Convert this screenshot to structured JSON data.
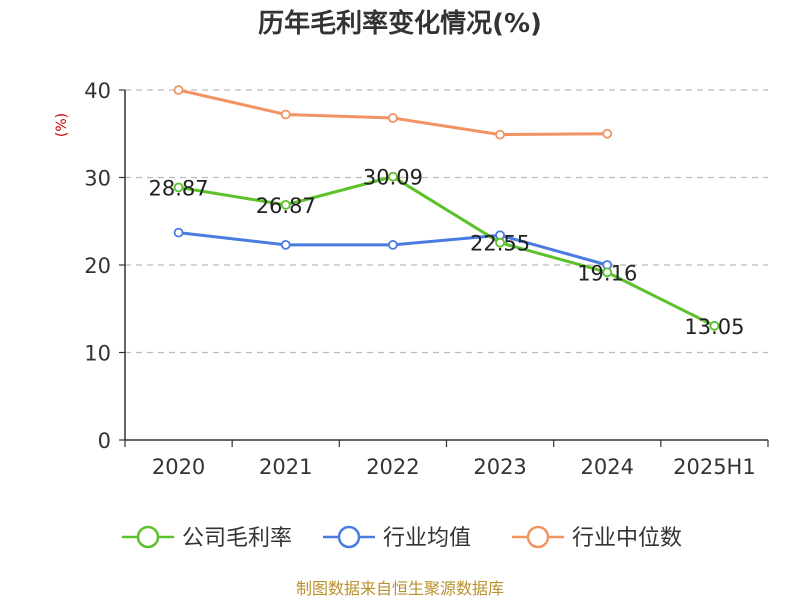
{
  "chart_data": {
    "type": "line",
    "title": "历年毛利率变化情况(%)",
    "ylabel": "(%)",
    "xlabel": "",
    "categories": [
      "2020",
      "2021",
      "2022",
      "2023",
      "2024",
      "2025H1"
    ],
    "ylim": [
      0,
      40
    ],
    "yticks": [
      0,
      10,
      20,
      30,
      40
    ],
    "grid": true,
    "legend_position": "bottom",
    "series": [
      {
        "name": "公司毛利率",
        "color": "#5cc12b",
        "values": [
          28.87,
          26.87,
          30.09,
          22.55,
          19.16,
          13.05
        ],
        "labels": [
          "28.87",
          "26.87",
          "30.09",
          "22.55",
          "19.16",
          "13.05"
        ]
      },
      {
        "name": "行业均值",
        "color": "#4a7be0",
        "values": [
          23.7,
          22.3,
          22.3,
          23.4,
          20.0,
          null
        ],
        "labels": []
      },
      {
        "name": "行业中位数",
        "color": "#f39363",
        "values": [
          40.0,
          37.2,
          36.8,
          34.9,
          35.0,
          null
        ],
        "labels": []
      }
    ]
  },
  "source": "制图数据来自恒生聚源数据库",
  "colors": {
    "source_text": "#b8912e",
    "ylabel": "#cc0000"
  }
}
